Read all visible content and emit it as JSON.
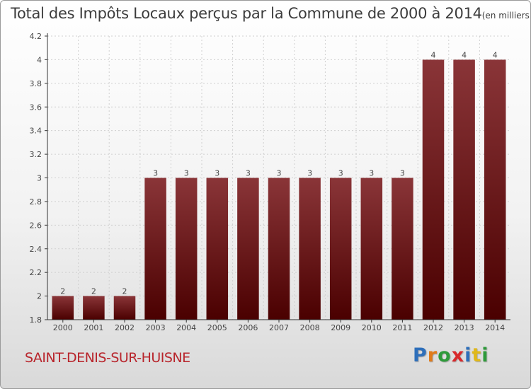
{
  "title": {
    "main": "Total des Impôts Locaux perçus par la Commune de 2000 à 2014",
    "unit": "(en milliers d'€)"
  },
  "commune": "SAINT-DENIS-SUR-HUISNE",
  "logo": {
    "letters": [
      {
        "char": "P",
        "color": "#2e6fba"
      },
      {
        "char": "r",
        "color": "#e07b1a"
      },
      {
        "char": "o",
        "color": "#2e9a3a"
      },
      {
        "char": "x",
        "color": "#d8282b"
      },
      {
        "char": "i",
        "color": "#2e6fba"
      },
      {
        "char": "t",
        "color": "#e0b81a"
      },
      {
        "char": "i",
        "color": "#2e9a3a"
      }
    ]
  },
  "colors": {
    "bar_top": "#8a3538",
    "bar_bottom": "#4a0000",
    "axis": "#333333",
    "grid": "#d0d0d0"
  },
  "chart_data": {
    "type": "bar",
    "title": "Total des Impôts Locaux perçus par la Commune de 2000 à 2014",
    "xlabel": "",
    "ylabel": "",
    "categories": [
      "2000",
      "2001",
      "2002",
      "2003",
      "2004",
      "2005",
      "2006",
      "2007",
      "2008",
      "2009",
      "2010",
      "2011",
      "2012",
      "2013",
      "2014"
    ],
    "values": [
      2,
      2,
      2,
      3,
      3,
      3,
      3,
      3,
      3,
      3,
      3,
      3,
      4,
      4,
      4
    ],
    "data_labels": [
      "2",
      "2",
      "2",
      "3",
      "3",
      "3",
      "3",
      "3",
      "3",
      "3",
      "3",
      "3",
      "4",
      "4",
      "4"
    ],
    "ylim": [
      1.8,
      4.2
    ],
    "yticks": [
      1.8,
      2,
      2.2,
      2.4,
      2.6,
      2.8,
      3,
      3.2,
      3.4,
      3.6,
      3.8,
      4,
      4.2
    ],
    "ytick_labels": [
      "1.8",
      "2",
      "2.2",
      "2.4",
      "2.6",
      "2.8",
      "3",
      "3.2",
      "3.4",
      "3.6",
      "3.8",
      "4",
      "4.2"
    ],
    "grid": true
  }
}
